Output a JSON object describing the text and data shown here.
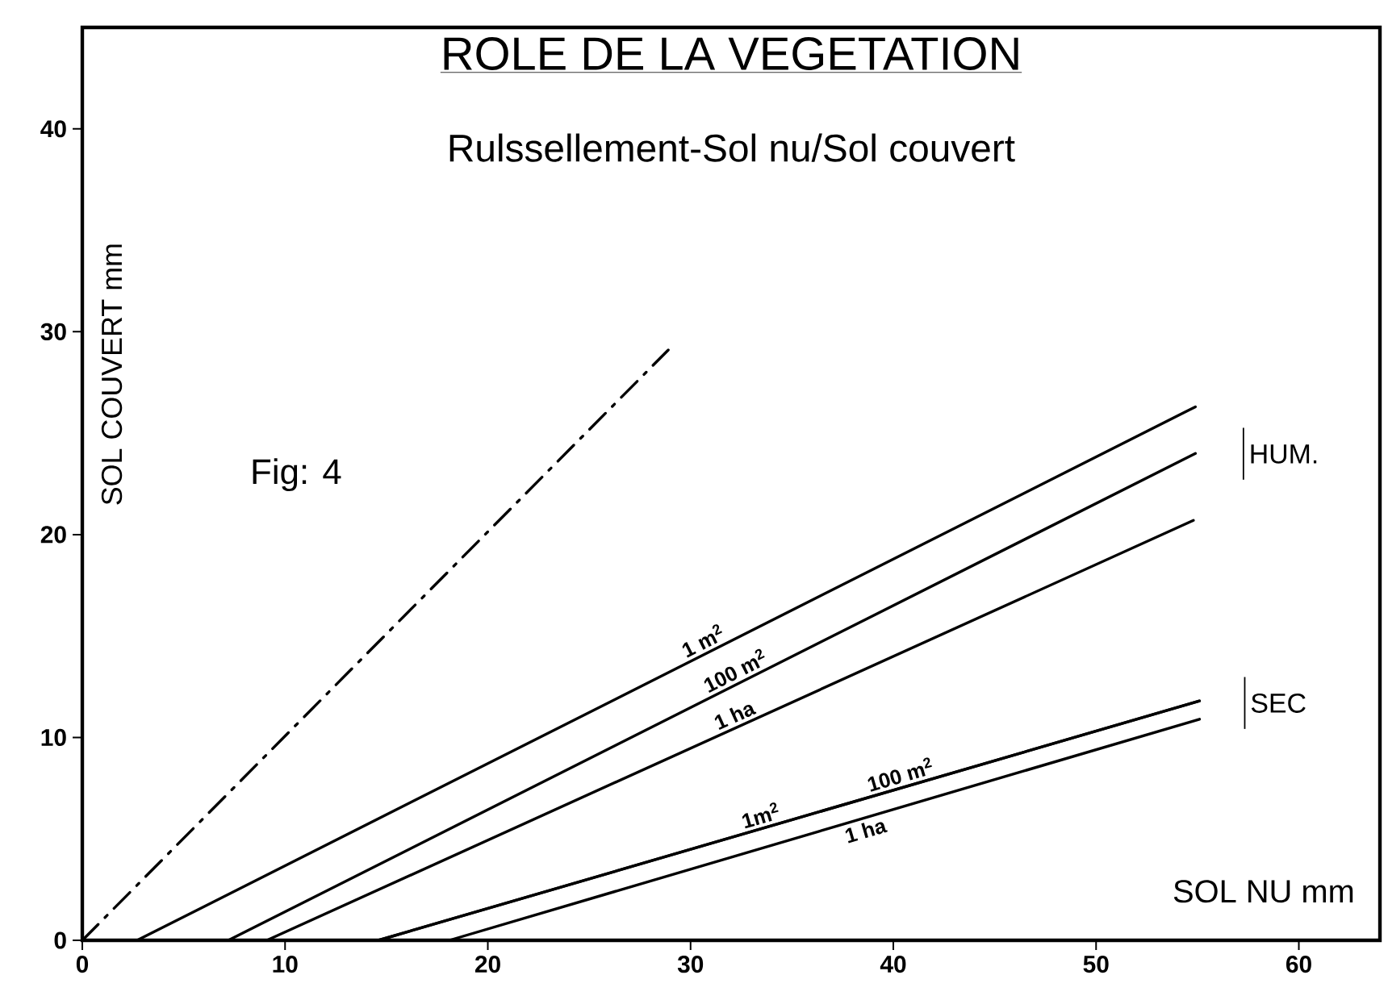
{
  "chart_data": {
    "type": "line",
    "title": "ROLE DE LA VEGETATION",
    "subtitle": "Rulssellement-Sol nu/Sol couvert",
    "xlabel": "SOL NU mm",
    "ylabel": "SOL COUVERT mm",
    "xlim": [
      0,
      64
    ],
    "ylim": [
      0,
      45
    ],
    "xticks": [
      0,
      10,
      20,
      30,
      40,
      50,
      60
    ],
    "yticks": [
      0,
      10,
      20,
      30,
      40
    ],
    "marker": "none",
    "annotations": [
      "Fig: 4",
      "HUM.",
      "SEC"
    ],
    "series": [
      {
        "color": "#000000",
        "line_style": "dashdot",
        "x": [
          0,
          28.9
        ],
        "values": [
          0,
          29.1
        ]
      },
      {
        "name": "1 m$^{2}$",
        "color": "#000000",
        "line_style": "solid",
        "x": [
          2.7,
          54.9
        ],
        "values": [
          0,
          26.3
        ]
      },
      {
        "name": "100 m$^{2}$",
        "color": "#000000",
        "line_style": "solid",
        "x": [
          7.2,
          54.9
        ],
        "values": [
          0,
          24.0
        ]
      },
      {
        "name": "1 ha",
        "color": "#000000",
        "line_style": "solid",
        "x": [
          9.1,
          54.8
        ],
        "values": [
          0,
          20.7
        ]
      },
      {
        "name": "1m$^{2}$",
        "color": "#000000",
        "line_style": "solid",
        "x": [
          14.6,
          55.1
        ],
        "values": [
          0,
          11.8
        ]
      },
      {
        "name": "100 m$^{2}$",
        "color": "#000000",
        "line_style": "solid",
        "x": [
          14.6,
          55.1
        ],
        "values": [
          0,
          11.8
        ]
      },
      {
        "name": "1 ha",
        "color": "#000000",
        "line_style": "solid",
        "x": [
          18.1,
          55.1
        ],
        "values": [
          0,
          10.9
        ]
      }
    ]
  }
}
